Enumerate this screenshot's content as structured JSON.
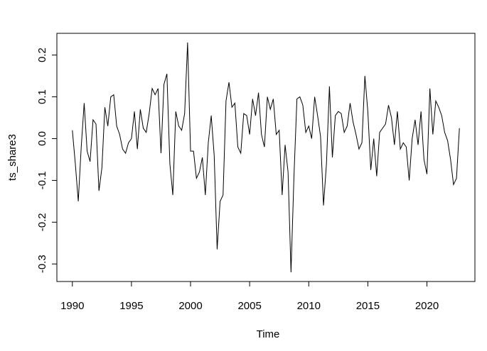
{
  "chart_data": {
    "type": "line",
    "x_label": "Time",
    "y_label": "ts_share3",
    "x": [
      1990,
      1990.25,
      1990.5,
      1990.75,
      1991,
      1991.25,
      1991.5,
      1991.75,
      1992,
      1992.25,
      1992.5,
      1992.75,
      1993,
      1993.25,
      1993.5,
      1993.75,
      1994,
      1994.25,
      1994.5,
      1994.75,
      1995,
      1995.25,
      1995.5,
      1995.75,
      1996,
      1996.25,
      1996.5,
      1996.75,
      1997,
      1997.25,
      1997.5,
      1997.75,
      1998,
      1998.25,
      1998.5,
      1998.75,
      1999,
      1999.25,
      1999.5,
      1999.75,
      2000,
      2000.25,
      2000.5,
      2000.75,
      2001,
      2001.25,
      2001.5,
      2001.75,
      2002,
      2002.25,
      2002.5,
      2002.75,
      2003,
      2003.25,
      2003.5,
      2003.75,
      2004,
      2004.25,
      2004.5,
      2004.75,
      2005,
      2005.25,
      2005.5,
      2005.75,
      2006,
      2006.25,
      2006.5,
      2006.75,
      2007,
      2007.25,
      2007.5,
      2007.75,
      2008,
      2008.25,
      2008.5,
      2008.75,
      2009,
      2009.25,
      2009.5,
      2009.75,
      2010,
      2010.25,
      2010.5,
      2010.75,
      2011,
      2011.25,
      2011.5,
      2011.75,
      2012,
      2012.25,
      2012.5,
      2012.75,
      2013,
      2013.25,
      2013.5,
      2013.75,
      2014,
      2014.25,
      2014.5,
      2014.75,
      2015,
      2015.25,
      2015.5,
      2015.75,
      2016,
      2016.25,
      2016.5,
      2016.75,
      2017,
      2017.25,
      2017.5,
      2017.75,
      2018,
      2018.25,
      2018.5,
      2018.75,
      2019,
      2019.25,
      2019.5,
      2019.75,
      2020,
      2020.25,
      2020.5,
      2020.75,
      2021,
      2021.25,
      2021.5,
      2021.75,
      2022,
      2022.25,
      2022.5,
      2022.75
    ],
    "values": [
      0.02,
      -0.06,
      -0.15,
      -0.02,
      0.085,
      -0.03,
      -0.055,
      0.045,
      0.035,
      -0.125,
      -0.07,
      0.075,
      0.03,
      0.1,
      0.105,
      0.03,
      0.01,
      -0.025,
      -0.035,
      -0.01,
      0.0,
      0.065,
      -0.025,
      0.07,
      0.025,
      0.015,
      0.06,
      0.12,
      0.105,
      0.12,
      -0.035,
      0.13,
      0.155,
      -0.06,
      -0.135,
      0.065,
      0.03,
      0.02,
      0.06,
      0.23,
      -0.03,
      -0.03,
      -0.095,
      -0.08,
      -0.045,
      -0.135,
      -0.01,
      0.055,
      -0.04,
      -0.265,
      -0.15,
      -0.135,
      0.09,
      0.135,
      0.075,
      0.085,
      -0.02,
      -0.035,
      0.06,
      0.055,
      0.01,
      0.095,
      0.055,
      0.11,
      0.01,
      -0.02,
      0.1,
      0.07,
      0.095,
      0.01,
      0.02,
      -0.135,
      -0.015,
      -0.08,
      -0.32,
      -0.09,
      0.095,
      0.1,
      0.08,
      0.015,
      0.03,
      0.0,
      0.1,
      0.055,
      0.005,
      -0.16,
      -0.06,
      0.125,
      -0.045,
      0.055,
      0.065,
      0.06,
      0.015,
      0.03,
      0.085,
      0.04,
      0.01,
      -0.025,
      -0.01,
      0.15,
      0.065,
      -0.075,
      0.0,
      -0.09,
      0.015,
      0.025,
      0.035,
      0.08,
      0.05,
      -0.015,
      0.065,
      -0.025,
      -0.01,
      -0.02,
      -0.1,
      0.0,
      0.045,
      -0.015,
      0.065,
      -0.05,
      -0.085,
      0.12,
      0.01,
      0.09,
      0.075,
      0.055,
      0.015,
      -0.005,
      -0.05,
      -0.11,
      -0.095,
      0.025
    ],
    "color": "#000000",
    "xlim": [
      1988.69,
      2024.06
    ],
    "xticks": [
      1990,
      1995,
      2000,
      2005,
      2010,
      2015,
      2020
    ],
    "ylim": [
      -0.342,
      0.252
    ],
    "yticks": [
      -0.3,
      -0.2,
      -0.1,
      {
        "value": 0,
        "label": "0.0"
      },
      0.1,
      0.2
    ]
  }
}
